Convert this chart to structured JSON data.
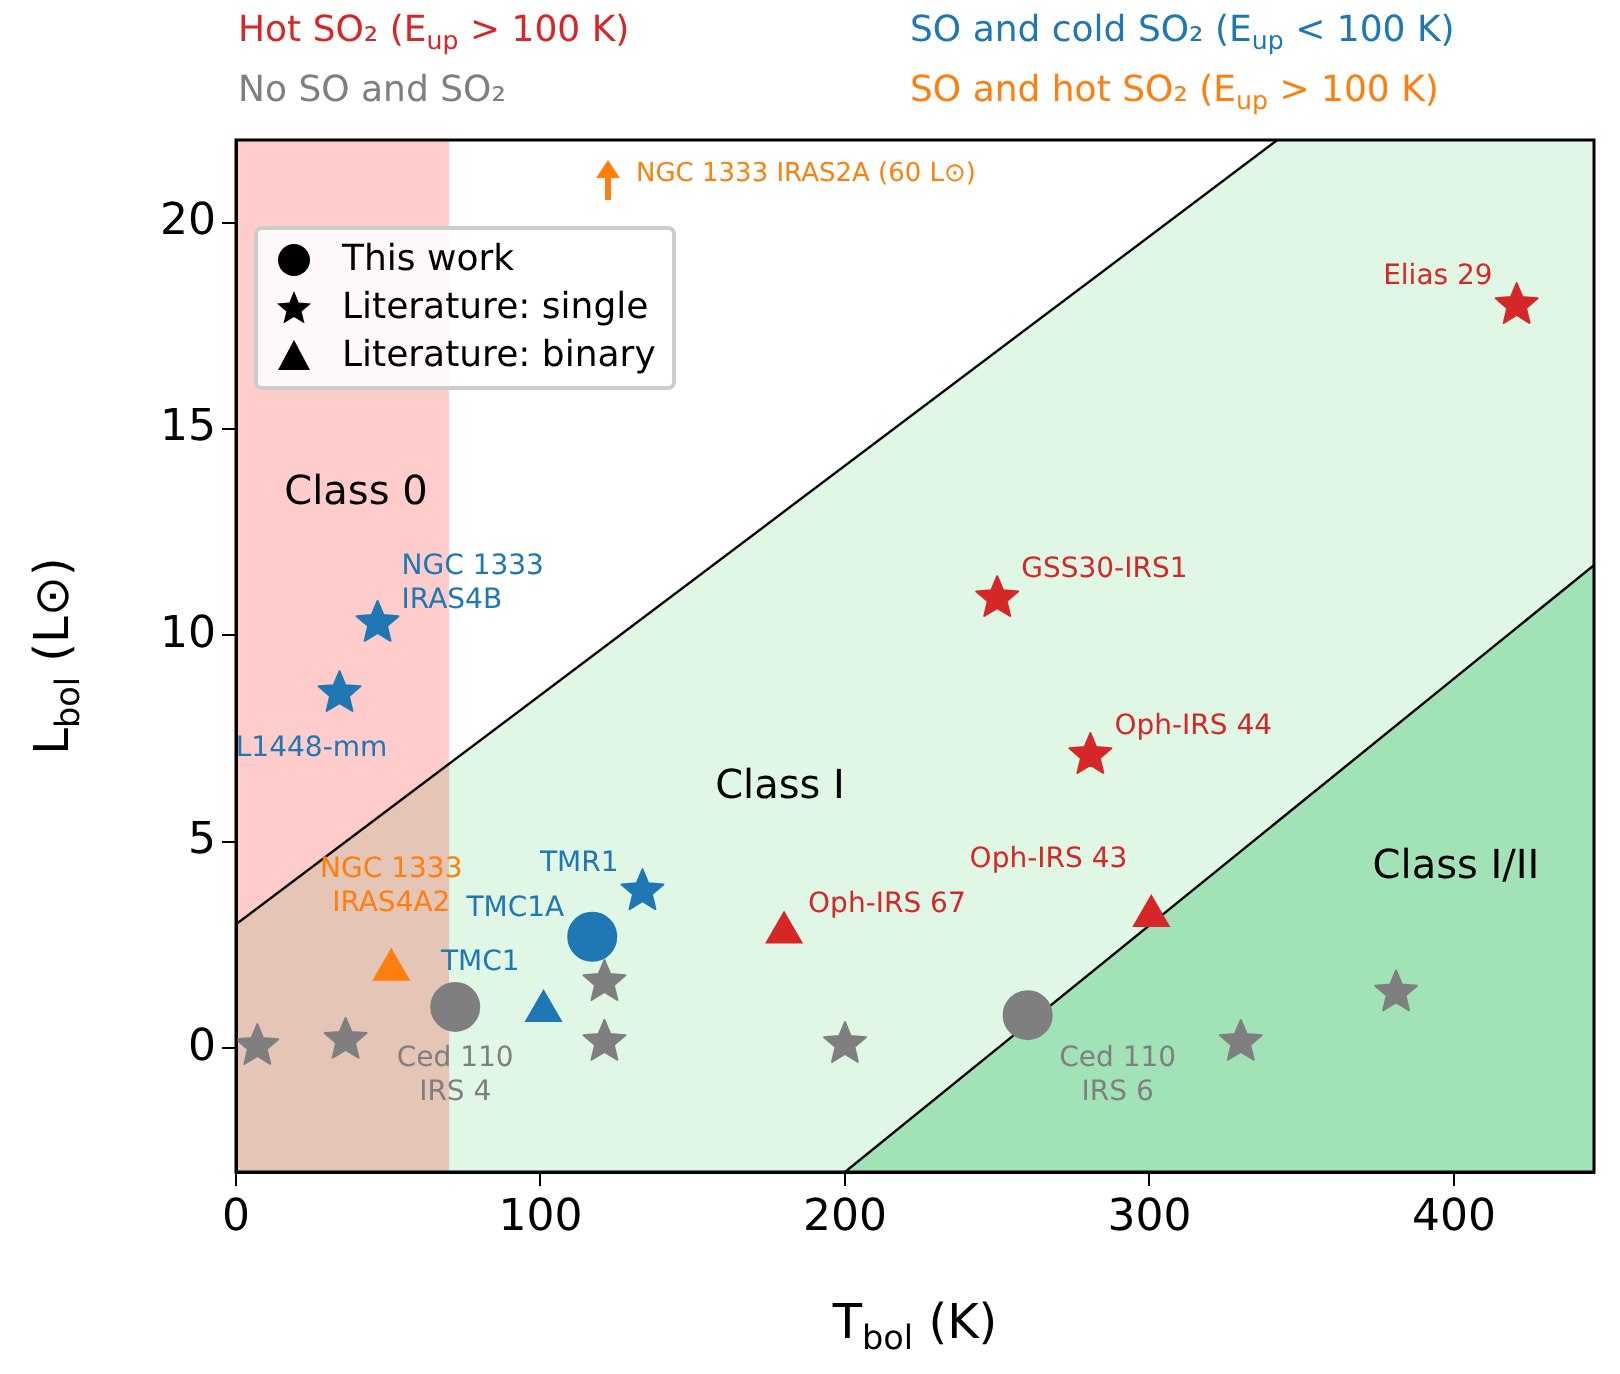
{
  "chart_data": {
    "type": "scatter",
    "xlabel": "T$_{bol}$ (K)",
    "ylabel": "L$_{bol}$ (L⊙)",
    "xlim": [
      0,
      446
    ],
    "ylim": [
      -3,
      22
    ],
    "xticks": [
      0,
      100,
      200,
      300,
      400
    ],
    "yticks": [
      0,
      5,
      10,
      15,
      20
    ],
    "grid": false,
    "legend": "top",
    "bands": [
      {
        "axis": "x",
        "from": 0,
        "to": 70,
        "color": "#ff0000"
      }
    ],
    "series": [
      {
        "type": "line",
        "color": "#000000",
        "x": [
          0,
          342
        ],
        "values": [
          3,
          22
        ]
      },
      {
        "type": "line",
        "color": "#000000",
        "x": [
          200,
          446
        ],
        "values": [
          -3,
          11.7
        ]
      },
      {
        "name": "Hot SO₂ (E$_{up}$ > 100 K)",
        "marker": "star",
        "color": "#d62728",
        "x": [
          420.6,
          250,
          280.6
        ],
        "values": [
          18.0,
          10.9,
          7.1
        ]
      },
      {
        "marker": "triangle",
        "color": "#d62728",
        "x": [
          180,
          300.6
        ],
        "values": [
          2.8,
          3.2
        ]
      },
      {
        "name": "SO and cold SO₂ (E$_{up}$ < 100 K)",
        "marker": "circle",
        "color": "#1f77b4",
        "x": [
          117
        ],
        "values": [
          2.7
        ]
      },
      {
        "marker": "star",
        "color": "#1f77b4",
        "x": [
          46.5,
          34,
          133.5
        ],
        "values": [
          10.3,
          8.6,
          3.8
        ]
      },
      {
        "marker": "triangle",
        "color": "#1f77b4",
        "x": [
          101
        ],
        "values": [
          0.9
        ]
      },
      {
        "name": "No SO and SO₂",
        "marker": "circle",
        "color": "#7f7f7f",
        "x": [
          72,
          260
        ],
        "values": [
          1.0,
          0.8
        ]
      },
      {
        "marker": "star",
        "color": "#7f7f7f",
        "x": [
          7,
          36,
          121,
          121,
          200,
          330,
          381
        ],
        "values": [
          0.05,
          0.2,
          1.6,
          0.15,
          0.1,
          0.15,
          1.35
        ]
      },
      {
        "name": "SO and hot SO₂ (E$_{up}$ > 100 K)",
        "marker": "triangle",
        "color": "#ff7f0e",
        "x": [
          51
        ],
        "values": [
          1.9
        ]
      }
    ],
    "annotations": [
      "This work",
      "Literature: single",
      "Literature: binary",
      "Class 0",
      "Class I",
      "Class I/II",
      "NGC 1333 IRAS2A (60 L⊙)",
      {
        "text": "Elias 29",
        "x": 420.6,
        "y": 18.0
      },
      {
        "text": "GSS30-IRS1",
        "x": 250,
        "y": 10.9
      },
      {
        "text": "Oph-IRS 44",
        "x": 280.6,
        "y": 7.1
      },
      {
        "text": "Oph-IRS 67",
        "x": 180,
        "y": 2.8
      },
      {
        "text": "Oph-IRS 43",
        "x": 300.6,
        "y": 3.2
      },
      {
        "text": "NGC 1333\nIRAS4B",
        "x": 46.5,
        "y": 10.3
      },
      {
        "text": "L1448-mm",
        "x": 34,
        "y": 8.6
      },
      {
        "text": "TMR1",
        "x": 133.5,
        "y": 3.8
      },
      {
        "text": "TMC1A",
        "x": 117,
        "y": 2.7
      },
      {
        "text": "TMC1",
        "x": 101,
        "y": 0.9
      },
      {
        "text": "NGC 1333\nIRAS4A2",
        "x": 51,
        "y": 1.9
      },
      {
        "text": "Ced 110\nIRS 4",
        "x": 72,
        "y": 1.0
      },
      {
        "text": "Ced 110\nIRS 6",
        "x": 260,
        "y": 0.8
      }
    ]
  }
}
